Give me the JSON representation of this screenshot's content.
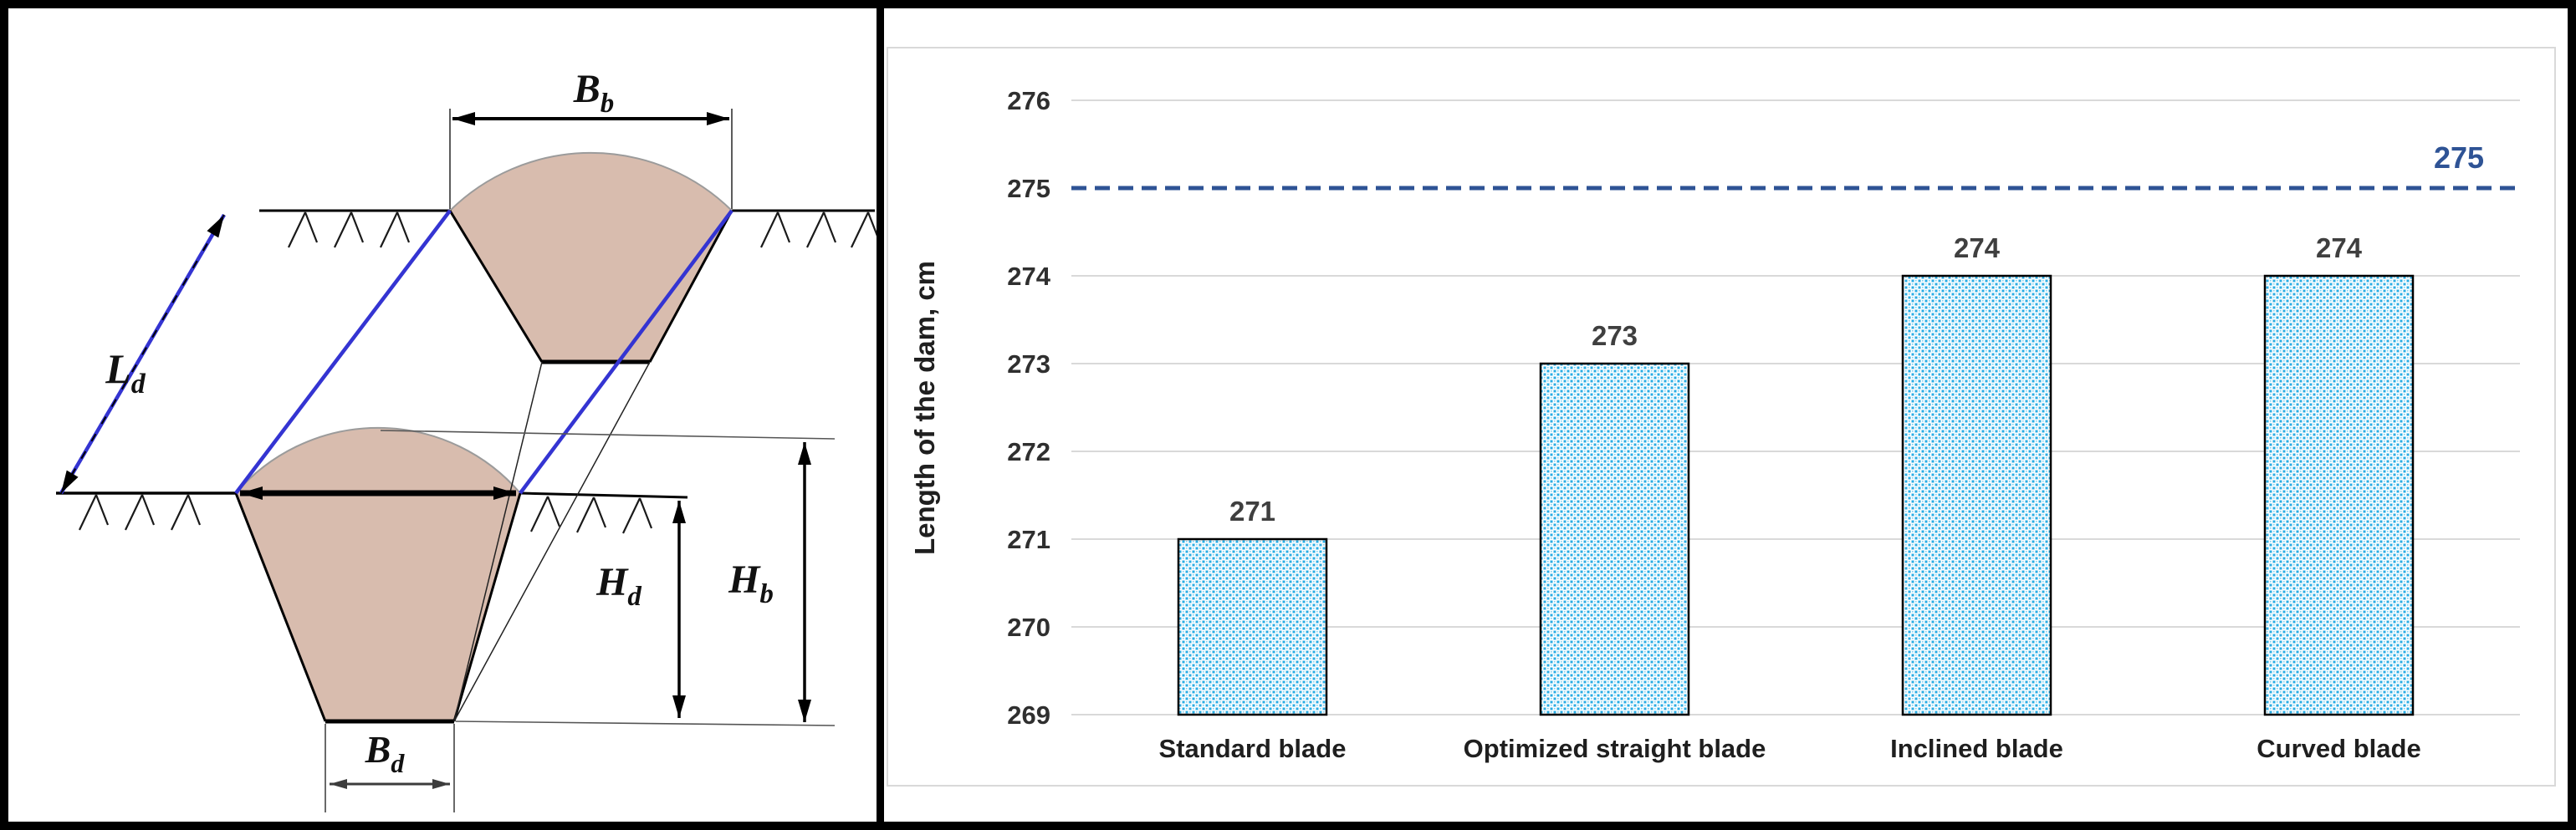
{
  "diagram": {
    "labels": {
      "Bb": {
        "main": "B",
        "sub": "b"
      },
      "Ld": {
        "main": "L",
        "sub": "d"
      },
      "Hd": {
        "main": "H",
        "sub": "d"
      },
      "Hb": {
        "main": "H",
        "sub": "b"
      },
      "Bd": {
        "main": "B",
        "sub": "d"
      }
    },
    "colors": {
      "dam_fill": "#d8bcae",
      "edge_blue": "#3434d2",
      "label_blue": "#2b2bd0"
    }
  },
  "chart_data": {
    "type": "bar",
    "title": "",
    "categories": [
      "Standard blade",
      "Optimized straight blade",
      "Inclined blade",
      "Curved blade"
    ],
    "values": [
      271,
      273,
      274,
      274
    ],
    "bar_labels": [
      "271",
      "273",
      "274",
      "274"
    ],
    "xlabel": "",
    "ylabel": "Length of the dam, cm",
    "ylim": [
      269,
      276
    ],
    "yticks": [
      269,
      270,
      271,
      272,
      273,
      274,
      275,
      276
    ],
    "grid": "horizontal",
    "legend": "none",
    "baseline": 269,
    "reference_line": {
      "value": 275,
      "label": "275",
      "style": "dashed",
      "color": "#2e5395"
    },
    "bar_style": {
      "fill": "dotted-pattern",
      "dot_color": "#29ace4",
      "background": "#ffffff",
      "border_color": "#000000"
    },
    "gridline_color": "#d9d9d9",
    "tick_label_color": "#2f2f2f",
    "category_label_color": "#1f1f1f",
    "data_label_color": "#3f3f3f"
  }
}
